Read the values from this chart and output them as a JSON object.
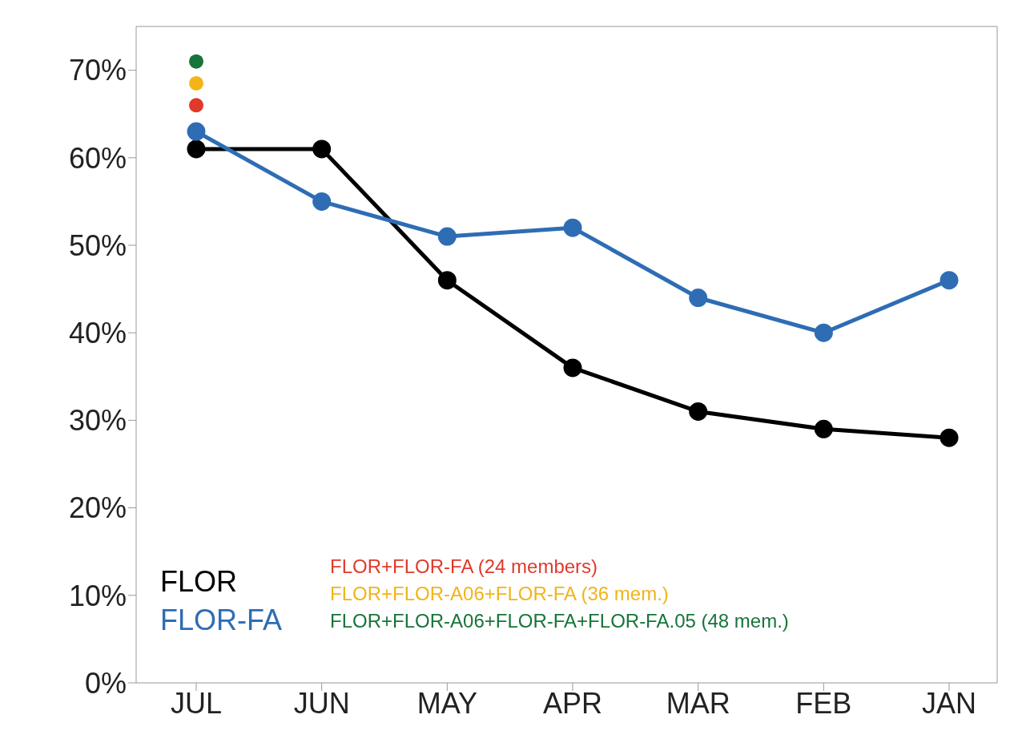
{
  "chart_data": {
    "type": "line",
    "categories": [
      "JUL",
      "JUN",
      "MAY",
      "APR",
      "MAR",
      "FEB",
      "JAN"
    ],
    "series": [
      {
        "name": "FLOR",
        "color": "#000000",
        "values": [
          61,
          61,
          46,
          36,
          31,
          29,
          28
        ]
      },
      {
        "name": "FLOR-FA",
        "color": "#2e6db4",
        "values": [
          63,
          55,
          51,
          52,
          44,
          40,
          46
        ]
      },
      {
        "name": "FLOR+FLOR-FA (24 members)",
        "color": "#e0392a",
        "type": "scatter",
        "values": [
          66,
          null,
          null,
          null,
          null,
          null,
          null
        ]
      },
      {
        "name": "FLOR+FLOR-A06+FLOR-FA (36 mem.)",
        "color": "#f2b418",
        "type": "scatter",
        "values": [
          68.5,
          null,
          null,
          null,
          null,
          null,
          null
        ]
      },
      {
        "name": "FLOR+FLOR-A06+FLOR-FA+FLOR-FA.05 (48 mem.)",
        "color": "#17743a",
        "type": "scatter",
        "values": [
          71,
          null,
          null,
          null,
          null,
          null,
          null
        ]
      }
    ],
    "ylim": [
      0,
      75
    ],
    "yticks": [
      {
        "value": 0,
        "label": "0%"
      },
      {
        "value": 10,
        "label": "10%"
      },
      {
        "value": 20,
        "label": "20%"
      },
      {
        "value": 30,
        "label": "30%"
      },
      {
        "value": 40,
        "label": "40%"
      },
      {
        "value": 50,
        "label": "50%"
      },
      {
        "value": 60,
        "label": "60%"
      },
      {
        "value": 70,
        "label": "70%"
      }
    ],
    "marker": "circle",
    "legend": "bottom"
  }
}
